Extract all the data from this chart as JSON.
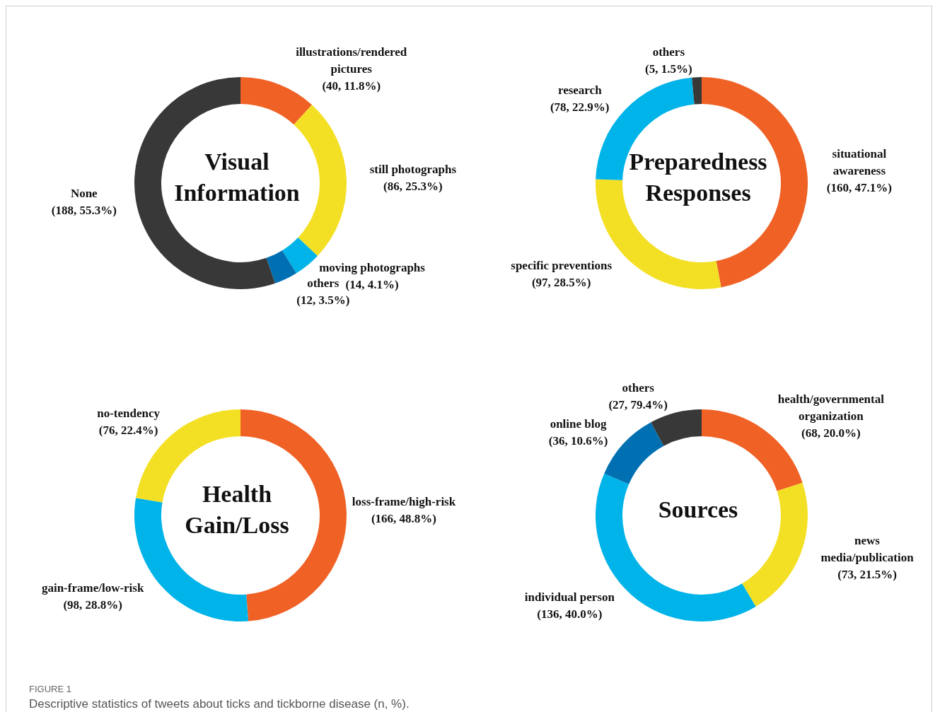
{
  "chart_data": [
    {
      "type": "donut",
      "title": "Visual Information",
      "categories": [
        "illustrations/rendered pictures",
        "still photographs",
        "moving photographs",
        "others",
        "None"
      ],
      "values": [
        40,
        86,
        14,
        12,
        188
      ],
      "value_labels": [
        "(40, 11.8%)",
        "(86, 25.3%)",
        "(14, 4.1%)",
        "(12, 3.5%)",
        "(188, 55.3%)"
      ],
      "colors": [
        "#ef6125",
        "#f3e024",
        "#00b3e8",
        "#0070b2",
        "#383838"
      ]
    },
    {
      "type": "donut",
      "title": "Preparedness Responses",
      "categories": [
        "situational awareness",
        "specific preventions",
        "research",
        "others"
      ],
      "values": [
        160,
        97,
        78,
        5
      ],
      "value_labels": [
        "(160, 47.1%)",
        "(97, 28.5%)",
        "(78, 22.9%)",
        "(5, 1.5%)"
      ],
      "colors": [
        "#ef6125",
        "#f3e024",
        "#00b3e8",
        "#383838"
      ]
    },
    {
      "type": "donut",
      "title": "Health Gain/Loss",
      "categories": [
        "loss-frame/high-risk",
        "gain-frame/low-risk",
        "no-tendency"
      ],
      "values": [
        166,
        98,
        76
      ],
      "value_labels": [
        "(166, 48.8%)",
        "(98, 28.8%)",
        "(76, 22.4%)"
      ],
      "colors": [
        "#ef6125",
        "#00b3e8",
        "#f3e024"
      ]
    },
    {
      "type": "donut",
      "title": "Sources",
      "categories": [
        "health/governmental organization",
        "news media/publication",
        "individual person",
        "online blog",
        "others"
      ],
      "values": [
        68,
        73,
        136,
        36,
        27
      ],
      "value_labels": [
        "(68, 20.0%)",
        "(73, 21.5%)",
        "(136, 40.0%)",
        "(36, 10.6%)",
        "(27, 79.4%)"
      ],
      "colors": [
        "#ef6125",
        "#f3e024",
        "#00b3e8",
        "#0070b2",
        "#383838"
      ],
      "annotations": [
        "FIGURE 1",
        "Descriptive statistics of tweets about ticks and tickborne disease (n, %)."
      ]
    }
  ]
}
